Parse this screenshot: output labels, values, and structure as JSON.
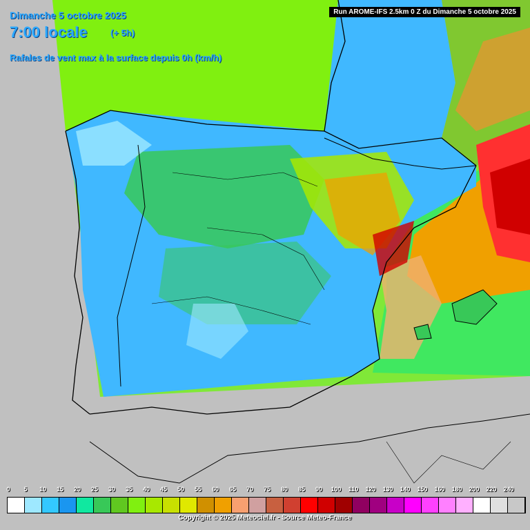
{
  "header": {
    "date": "Dimanche 5 octobre 2025",
    "time": "7:00 locale",
    "lead": "(+ 5h)",
    "parameter": "Rafales de vent max à la surface depuis 0h (km/h)"
  },
  "run_info": "Run AROME-IFS 2.5km 0 Z du Dimanche 5 octobre 2025",
  "copyright": "Copyright © 2025 Meteociel.fr - Source Meteo-France",
  "legend": {
    "labels": [
      "0",
      "5",
      "10",
      "15",
      "20",
      "25",
      "30",
      "35",
      "40",
      "45",
      "50",
      "55",
      "60",
      "65",
      "70",
      "75",
      "80",
      "85",
      "90",
      "100",
      "110",
      "120",
      "130",
      "140",
      "150",
      "160",
      "180",
      "200",
      "220",
      "240"
    ],
    "colors": [
      "#ffffff",
      "#9ee8ff",
      "#33c8ff",
      "#1a96f0",
      "#10e8a0",
      "#38c858",
      "#60c820",
      "#80f010",
      "#a8e800",
      "#c8e000",
      "#e0e800",
      "#d09000",
      "#f0a000",
      "#f8a070",
      "#d0a0a0",
      "#c86040",
      "#d04030",
      "#ff0000",
      "#d00000",
      "#a00000",
      "#900060",
      "#a00080",
      "#c800c8",
      "#ff00ff",
      "#ff40ff",
      "#ff80ff",
      "#ffb0ff",
      "#ffffff",
      "#e0e0e0",
      "#c8c8c8"
    ]
  },
  "map": {
    "colors": {
      "land_outside": "#c0c0c0",
      "sea_north": "#80f010",
      "sea_atlantic": "#40e860",
      "land_cool": "#40b8ff",
      "land_mid": "#38c858",
      "land_warm": "#80e030",
      "gust_orange": "#f0a000",
      "gust_red": "#ff0000",
      "gust_dark": "#c00000"
    }
  }
}
